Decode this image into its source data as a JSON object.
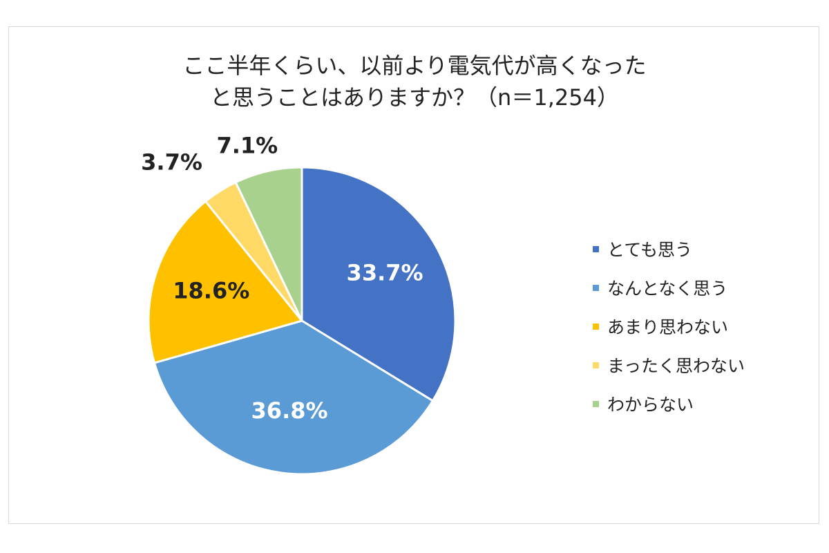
{
  "chart_data": {
    "type": "pie",
    "title": "ここ半年くらい、以前より電気代が高くなった",
    "subtitle": "と思うことはありますか？（n＝1,254）",
    "categories": [
      "とても思う",
      "なんとなく思う",
      "あまり思わない",
      "まったく思わない",
      "わからない"
    ],
    "values": [
      33.7,
      36.8,
      18.6,
      3.7,
      7.1
    ],
    "labels": [
      "33.7%",
      "36.8%",
      "18.6%",
      "3.7%",
      "7.1%"
    ],
    "colors": [
      "#4472c4",
      "#5b9bd5",
      "#ffc000",
      "#ffd966",
      "#a9d18e"
    ],
    "label_colors": [
      "#ffffff",
      "#ffffff",
      "#222222",
      "#222222",
      "#222222"
    ],
    "legend_position": "right"
  }
}
